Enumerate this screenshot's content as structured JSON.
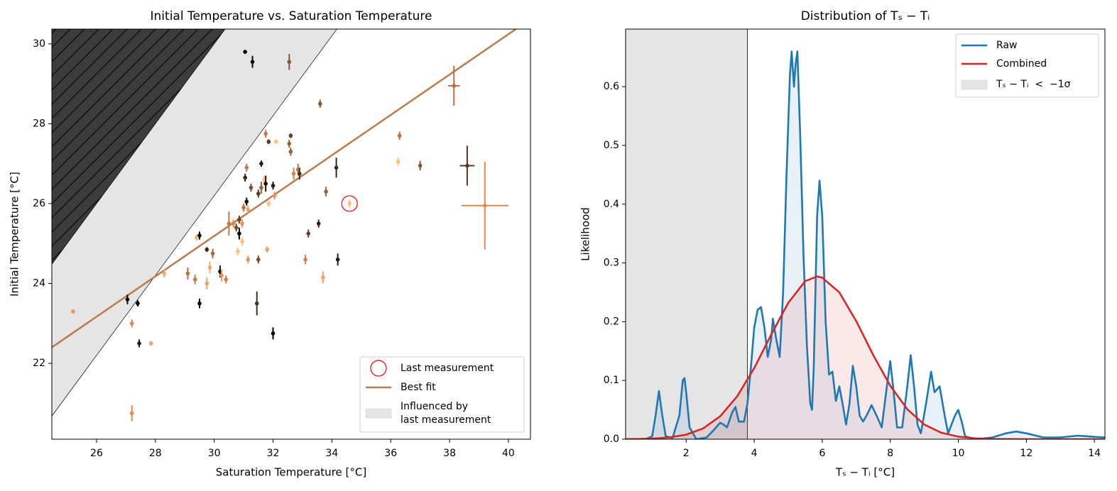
{
  "chart_data": [
    {
      "type": "scatter",
      "title": "Initial Temperature vs. Saturation Temperature",
      "x_label": "Saturation Temperature [°C]",
      "y_label": "Initial Temperature [°C]",
      "xlim": [
        24.48,
        40.75
      ],
      "ylim": [
        20.1,
        30.37
      ],
      "xticks": [
        26,
        28,
        30,
        32,
        34,
        36,
        38,
        40
      ],
      "yticks": [
        22,
        24,
        26,
        28,
        30
      ],
      "legend": "lower right",
      "points": {
        "x": [
          25.2,
          27.05,
          27.2,
          27.4,
          27.45,
          27.2,
          27.85,
          28.3,
          29.5,
          29.4,
          29.5,
          29.1,
          29.35,
          29.75,
          29.75,
          29.85,
          29.95,
          30.2,
          30.25,
          30.4,
          30.5,
          30.65,
          30.75,
          30.8,
          30.85,
          30.85,
          30.95,
          30.95,
          31.0,
          31.05,
          31.1,
          31.1,
          31.15,
          31.15,
          31.25,
          31.3,
          31.05,
          31.45,
          31.5,
          31.5,
          31.6,
          31.6,
          31.7,
          31.75,
          31.75,
          31.8,
          31.85,
          31.85,
          32.0,
          32.05,
          32.1,
          32.0,
          32.55,
          32.55,
          32.6,
          32.6,
          32.7,
          32.85,
          32.9,
          33.1,
          33.2,
          33.55,
          33.6,
          33.7,
          33.8,
          34.15,
          34.2,
          34.6,
          36.25,
          36.3,
          37.0,
          38.15,
          38.6,
          39.2
        ],
        "y": [
          23.3,
          23.6,
          23.0,
          23.5,
          22.5,
          20.75,
          22.5,
          24.25,
          25.2,
          25.15,
          23.5,
          24.25,
          24.1,
          24.85,
          24.0,
          24.4,
          24.75,
          24.3,
          24.2,
          24.1,
          25.5,
          25.5,
          25.4,
          24.8,
          25.25,
          25.6,
          25.5,
          25.05,
          25.9,
          26.65,
          26.05,
          26.9,
          25.85,
          24.6,
          26.4,
          29.55,
          29.8,
          23.5,
          24.6,
          26.25,
          27.0,
          26.4,
          26.6,
          27.75,
          26.5,
          24.85,
          27.55,
          26.0,
          26.45,
          26.2,
          27.55,
          22.75,
          29.55,
          27.5,
          27.7,
          27.3,
          26.75,
          26.85,
          26.75,
          24.6,
          25.25,
          25.5,
          28.5,
          24.15,
          26.3,
          26.9,
          24.6,
          26.0,
          27.05,
          27.7,
          26.95,
          28.95,
          26.95,
          25.95
        ],
        "yerr": [
          0.05,
          0.12,
          0.1,
          0.08,
          0.1,
          0.2,
          0.06,
          0.1,
          0.1,
          0.08,
          0.12,
          0.15,
          0.12,
          0.06,
          0.15,
          0.15,
          0.12,
          0.15,
          0.15,
          0.1,
          0.3,
          0.1,
          0.1,
          0.1,
          0.15,
          0.1,
          0.1,
          0.1,
          0.1,
          0.1,
          0.1,
          0.1,
          0.1,
          0.1,
          0.1,
          0.15,
          0.05,
          0.3,
          0.1,
          0.1,
          0.08,
          0.15,
          0.1,
          0.1,
          0.2,
          0.08,
          0.06,
          0.08,
          0.1,
          0.1,
          0.05,
          0.15,
          0.2,
          0.1,
          0.06,
          0.1,
          0.15,
          0.15,
          0.15,
          0.12,
          0.1,
          0.1,
          0.1,
          0.15,
          0.12,
          0.25,
          0.15,
          0.1,
          0.1,
          0.1,
          0.12,
          0.5,
          0.5,
          1.1
        ],
        "xerr": [
          0,
          0,
          0,
          0,
          0,
          0,
          0,
          0,
          0,
          0,
          0,
          0,
          0,
          0,
          0,
          0,
          0,
          0,
          0,
          0,
          0,
          0,
          0,
          0,
          0,
          0,
          0,
          0,
          0,
          0,
          0,
          0,
          0,
          0,
          0,
          0,
          0,
          0,
          0,
          0,
          0,
          0,
          0,
          0,
          0,
          0,
          0,
          0,
          0,
          0,
          0,
          0,
          0,
          0,
          0,
          0,
          0,
          0,
          0,
          0,
          0,
          0,
          0,
          0,
          0,
          0,
          0,
          0,
          0,
          0,
          0,
          0.2,
          0.25,
          0.8
        ],
        "colors": [
          "#e8935a",
          "#000000",
          "#e0884f",
          "#000000",
          "#2a1a10",
          "#e0884f",
          "#f0a36a",
          "#f5a870",
          "#000000",
          "#f5b070",
          "#000000",
          "#b87040",
          "#c27a45",
          "#3a2515",
          "#f0a06a",
          "#f5a870",
          "#a86a40",
          "#1a0f08",
          "#e8935a",
          "#d28050",
          "#c27a45",
          "#d8874f",
          "#7a4b2a",
          "#ffc080",
          "#000000",
          "#6a4024",
          "#e8935a",
          "#ffc080",
          "#b87040",
          "#3a2515",
          "#1a0f08",
          "#c27a45",
          "#f0a06a",
          "#e8935a",
          "#7a4b2a",
          "#0a0503",
          "#000000",
          "#4a2e1a",
          "#7a4b2a",
          "#5a3820",
          "#2a1a10",
          "#9a6038",
          "#ffc080",
          "#c27a45",
          "#1a0f08",
          "#f0a06a",
          "#5a3820",
          "#ffc080",
          "#2a1a10",
          "#e8935a",
          "#ffc080",
          "#000000",
          "#8a5530",
          "#9a6038",
          "#6a4024",
          "#9a6038",
          "#d28050",
          "#b87040",
          "#4a2e1a",
          "#d28050",
          "#6a4024",
          "#3a2515",
          "#8a5530",
          "#f0a06a",
          "#9a6038",
          "#3a2515",
          "#2a1a10",
          "#ffc080",
          "#ffc080",
          "#b87040",
          "#8a5530",
          "#b87040",
          "#5a3820",
          "#e0884f"
        ]
      },
      "fit_line": {
        "name": "Best fit",
        "color": "#bd7a4c",
        "x": [
          24.48,
          40.75
        ],
        "y": [
          22.4,
          30.62
        ]
      },
      "highlight": {
        "name": "Last measurement",
        "color": "#ff0000",
        "x": 34.6,
        "y": 26.0
      },
      "influence_region": {
        "name_lines": [
          "Influenced by",
          "last measurement"
        ],
        "color": "#e5e5e5",
        "offsets": [
          -3.8,
          0
        ]
      },
      "impossible_region": {
        "color": "#3c3c3c",
        "hatch": true,
        "above_offset": 0
      }
    },
    {
      "type": "line",
      "title": "Distribution of Tₛ − Tᵢ",
      "x_label": "Tₛ − Tᵢ [°C]",
      "y_label": "Likelihood",
      "xlim": [
        0.22,
        14.31
      ],
      "ylim": [
        0,
        0.698
      ],
      "xticks": [
        2,
        4,
        6,
        8,
        10,
        12,
        14
      ],
      "yticks": [
        {
          "value": 0,
          "label": "0.0"
        },
        0.1,
        0.2,
        0.3,
        0.4,
        0.5,
        0.6
      ],
      "legend": "upper right",
      "fill_alpha": 0.1,
      "threshold": {
        "name": "Tₛ − Tᵢ  <  −1σ",
        "value": 3.8,
        "color": "#e5e5e5"
      },
      "series": [
        {
          "name": "Raw",
          "color": "#1f77b4",
          "x": [
            0.22,
            0.8,
            1.0,
            1.1,
            1.2,
            1.3,
            1.4,
            1.6,
            1.8,
            1.9,
            1.95,
            2.0,
            2.1,
            2.3,
            2.6,
            2.8,
            3.0,
            3.1,
            3.2,
            3.35,
            3.45,
            3.55,
            3.7,
            3.8,
            3.9,
            4.0,
            4.1,
            4.2,
            4.3,
            4.4,
            4.5,
            4.55,
            4.65,
            4.75,
            4.85,
            4.95,
            5.05,
            5.1,
            5.17,
            5.22,
            5.27,
            5.35,
            5.45,
            5.55,
            5.65,
            5.7,
            5.75,
            5.85,
            5.92,
            6.0,
            6.1,
            6.2,
            6.3,
            6.4,
            6.5,
            6.6,
            6.7,
            6.8,
            6.9,
            7.0,
            7.1,
            7.2,
            7.3,
            7.45,
            7.6,
            7.75,
            7.9,
            8.0,
            8.1,
            8.2,
            8.35,
            8.5,
            8.6,
            8.7,
            8.8,
            8.9,
            9.05,
            9.2,
            9.3,
            9.45,
            9.6,
            9.7,
            9.9,
            10.0,
            10.1,
            10.2,
            10.5,
            11.0,
            11.4,
            11.7,
            12.0,
            12.5,
            13.0,
            13.5,
            14.0,
            14.31
          ],
          "values": [
            0.0,
            0.0,
            0.005,
            0.04,
            0.082,
            0.04,
            0.005,
            0.002,
            0.04,
            0.1,
            0.104,
            0.08,
            0.02,
            0.0,
            0.003,
            0.015,
            0.028,
            0.025,
            0.02,
            0.045,
            0.055,
            0.03,
            0.03,
            0.06,
            0.12,
            0.19,
            0.22,
            0.225,
            0.19,
            0.14,
            0.17,
            0.205,
            0.17,
            0.14,
            0.25,
            0.45,
            0.62,
            0.66,
            0.6,
            0.64,
            0.66,
            0.52,
            0.31,
            0.16,
            0.06,
            0.05,
            0.12,
            0.38,
            0.44,
            0.38,
            0.2,
            0.11,
            0.115,
            0.065,
            0.09,
            0.06,
            0.025,
            0.06,
            0.125,
            0.09,
            0.04,
            0.03,
            0.04,
            0.058,
            0.04,
            0.02,
            0.09,
            0.133,
            0.08,
            0.02,
            0.02,
            0.09,
            0.143,
            0.09,
            0.025,
            0.01,
            0.06,
            0.115,
            0.08,
            0.09,
            0.04,
            0.01,
            0.04,
            0.05,
            0.03,
            0.005,
            0.0,
            0.003,
            0.01,
            0.013,
            0.01,
            0.003,
            0.003,
            0.006,
            0.004,
            0.003
          ]
        },
        {
          "name": "Combined",
          "color": "#d62728",
          "x": [
            0.22,
            0.5,
            1.0,
            1.5,
            2.0,
            2.5,
            3.0,
            3.5,
            4.0,
            4.5,
            5.0,
            5.5,
            5.85,
            6.0,
            6.5,
            7.0,
            7.5,
            8.0,
            8.5,
            9.0,
            9.5,
            10.0,
            10.5,
            11.0,
            12.0,
            14.31
          ],
          "values": [
            0.0001,
            0.0003,
            0.001,
            0.003,
            0.0077,
            0.0184,
            0.039,
            0.073,
            0.121,
            0.178,
            0.232,
            0.269,
            0.277,
            0.275,
            0.25,
            0.201,
            0.143,
            0.091,
            0.051,
            0.025,
            0.011,
            0.0043,
            0.0015,
            0.0004,
            3e-05,
            0.0
          ]
        }
      ]
    }
  ]
}
